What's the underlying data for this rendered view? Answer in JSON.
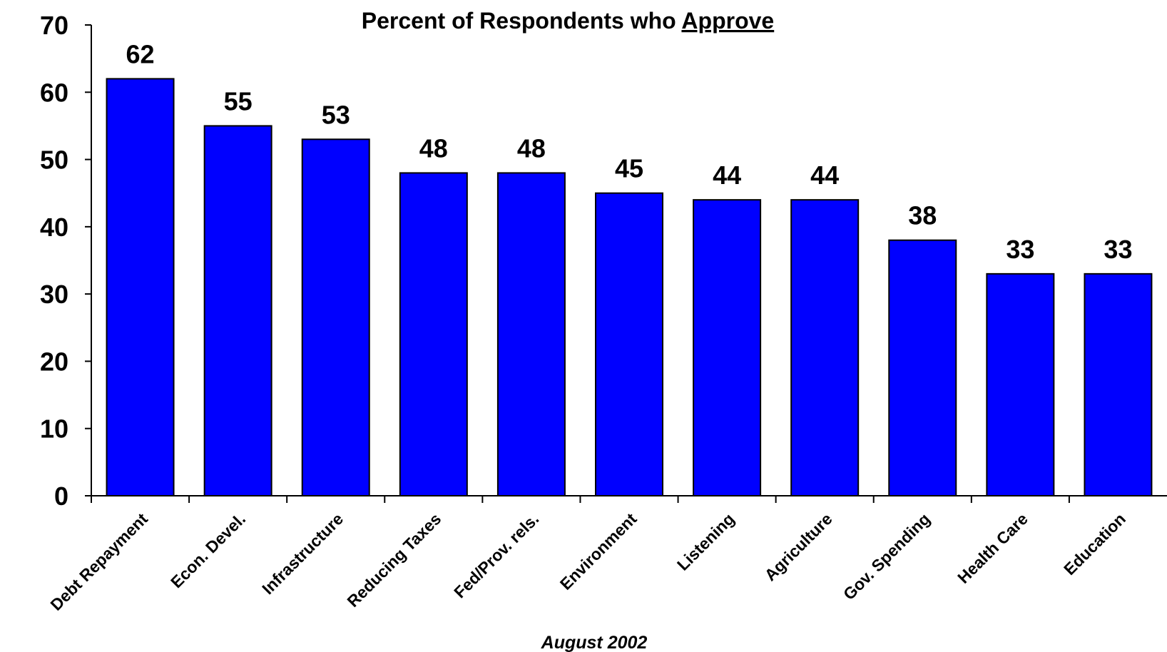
{
  "chart_data": {
    "type": "bar",
    "title": "Percent of Respondents who Approve",
    "title_plain": "Percent of Respondents who ",
    "title_underlined": "Approve",
    "xlabel": "August 2002",
    "ylabel": "",
    "ylim": [
      0,
      70
    ],
    "yticks": [
      0,
      10,
      20,
      30,
      40,
      50,
      60,
      70
    ],
    "categories": [
      "Debt Repayment",
      "Econ. Devel.",
      "Infrastructure",
      "Reducing Taxes",
      "Fed/Prov. rels.",
      "Environment",
      "Listening",
      "Agriculture",
      "Gov. Spending",
      "Health Care",
      "Education"
    ],
    "values": [
      62,
      55,
      53,
      48,
      48,
      45,
      44,
      44,
      38,
      33,
      33
    ],
    "bar_color": "#0000ff",
    "grid": false,
    "legend": "none"
  }
}
